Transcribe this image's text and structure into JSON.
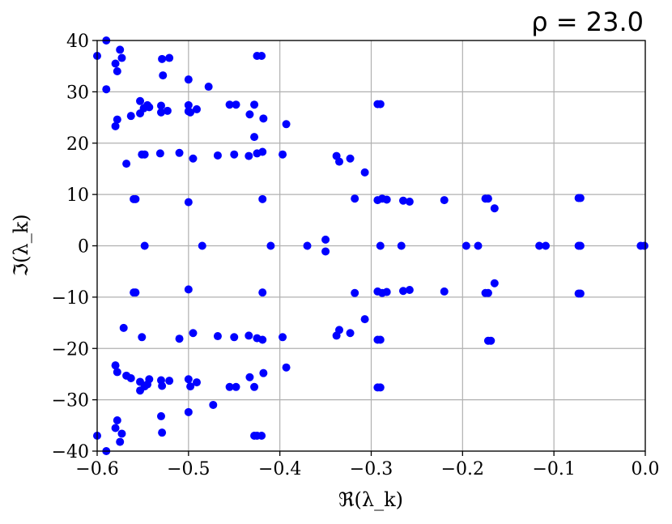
{
  "chart_data": {
    "type": "scatter",
    "title": "ρ = 23.0",
    "xlabel": "ℜ(λ_k)",
    "ylabel": "ℑ(λ_k)",
    "xlim": [
      -0.6,
      0.0
    ],
    "ylim": [
      -40,
      40
    ],
    "xticks": [
      -0.6,
      -0.5,
      -0.4,
      -0.3,
      -0.2,
      -0.1,
      0.0
    ],
    "xtick_labels": [
      "−0.6",
      "−0.5",
      "−0.4",
      "−0.3",
      "−0.2",
      "−0.1",
      "0.0"
    ],
    "yticks": [
      -40,
      -30,
      -20,
      -10,
      0,
      10,
      20,
      30,
      40
    ],
    "ytick_labels": [
      "−40",
      "−30",
      "−20",
      "−10",
      "0",
      "10",
      "20",
      "30",
      "40"
    ],
    "grid": true,
    "marker_color": "#0000ff",
    "series": [
      {
        "x": [
          -0.6,
          -0.59,
          -0.59,
          -0.58,
          -0.578,
          -0.575,
          -0.573,
          -0.529,
          -0.528,
          -0.521,
          -0.5,
          -0.478,
          -0.425,
          -0.42,
          -0.553,
          -0.549,
          -0.53,
          -0.523,
          -0.5,
          -0.498,
          -0.491,
          -0.455,
          -0.448,
          -0.433,
          -0.428,
          -0.418,
          -0.393,
          -0.58,
          -0.578,
          -0.568,
          -0.563,
          -0.553,
          -0.548,
          -0.545,
          -0.543,
          -0.53,
          -0.5,
          -0.428,
          -0.551,
          -0.531,
          -0.51,
          -0.495,
          -0.468,
          -0.45,
          -0.434,
          -0.425,
          -0.419,
          -0.397,
          -0.338,
          -0.335,
          -0.323,
          -0.307,
          -0.293,
          -0.29,
          -0.56,
          -0.558,
          -0.5,
          -0.419,
          -0.318,
          -0.293,
          -0.288,
          -0.283,
          -0.265,
          -0.258,
          -0.22,
          -0.175,
          -0.172,
          -0.165,
          -0.073,
          -0.071,
          -0.548,
          -0.485,
          -0.41,
          -0.37,
          -0.35,
          -0.35,
          -0.29,
          -0.267,
          -0.196,
          -0.183,
          -0.116,
          -0.109,
          -0.073,
          -0.071,
          -0.005,
          -0.001,
          -0.56,
          -0.558,
          -0.5,
          -0.419,
          -0.318,
          -0.293,
          -0.288,
          -0.283,
          -0.265,
          -0.258,
          -0.22,
          -0.175,
          -0.172,
          -0.165,
          -0.073,
          -0.071,
          -0.571,
          -0.551,
          -0.51,
          -0.495,
          -0.468,
          -0.45,
          -0.434,
          -0.425,
          -0.419,
          -0.397,
          -0.338,
          -0.335,
          -0.323,
          -0.307,
          -0.293,
          -0.29,
          -0.172,
          -0.169,
          -0.58,
          -0.578,
          -0.568,
          -0.563,
          -0.553,
          -0.548,
          -0.545,
          -0.543,
          -0.53,
          -0.5,
          -0.498,
          -0.491,
          -0.473,
          -0.455,
          -0.448,
          -0.433,
          -0.428,
          -0.418,
          -0.393,
          -0.293,
          -0.29,
          -0.6,
          -0.59,
          -0.58,
          -0.578,
          -0.575,
          -0.573,
          -0.53,
          -0.529,
          -0.5,
          -0.428,
          -0.553,
          -0.529,
          -0.521,
          -0.425,
          -0.42
        ],
        "y": [
          37,
          40,
          30.5,
          35.5,
          34,
          38.2,
          36.6,
          36.4,
          33.2,
          36.6,
          32.4,
          31,
          37,
          37,
          28.2,
          26.8,
          27.3,
          26.3,
          27.4,
          26,
          26.6,
          27.5,
          27.5,
          25.6,
          27.5,
          24.8,
          23.7,
          23.3,
          24.6,
          16,
          25.3,
          25.8,
          17.8,
          27.4,
          27,
          26,
          26.2,
          21.2,
          17.8,
          18,
          18.1,
          17,
          17.6,
          17.8,
          17.5,
          18,
          18.3,
          17.8,
          17.5,
          16.4,
          17,
          14.3,
          27.6,
          27.6,
          9.1,
          9.1,
          8.5,
          9.1,
          9.2,
          8.9,
          9.2,
          9,
          8.8,
          8.6,
          8.9,
          9.2,
          9.2,
          7.3,
          9.3,
          9.3,
          0,
          0,
          0,
          0,
          1.2,
          -1.1,
          0,
          0,
          0,
          0,
          0,
          0,
          0,
          0,
          0,
          0,
          -9.1,
          -9.1,
          -8.5,
          -9.1,
          -9.2,
          -8.9,
          -9.2,
          -9,
          -8.8,
          -8.6,
          -8.9,
          -9.2,
          -9.2,
          -7.3,
          -9.3,
          -9.3,
          -16,
          -17.8,
          -18.1,
          -17,
          -17.6,
          -17.8,
          -17.5,
          -18,
          -18.3,
          -17.8,
          -17.5,
          -16.4,
          -17,
          -14.3,
          -18.3,
          -18.3,
          -18.5,
          -18.5,
          -23.3,
          -24.6,
          -25.3,
          -25.8,
          -26.5,
          -27.4,
          -27,
          -26,
          -26.2,
          -26,
          -27.4,
          -26.6,
          -31,
          -27.5,
          -27.5,
          -25.6,
          -27.5,
          -24.8,
          -23.7,
          -27.6,
          -27.6,
          -37,
          -40,
          -35.5,
          -34,
          -38.2,
          -36.6,
          -33.2,
          -36.4,
          -32.4,
          -37,
          -28.2,
          -27.3,
          -26.3,
          -37,
          -37
        ]
      }
    ]
  }
}
